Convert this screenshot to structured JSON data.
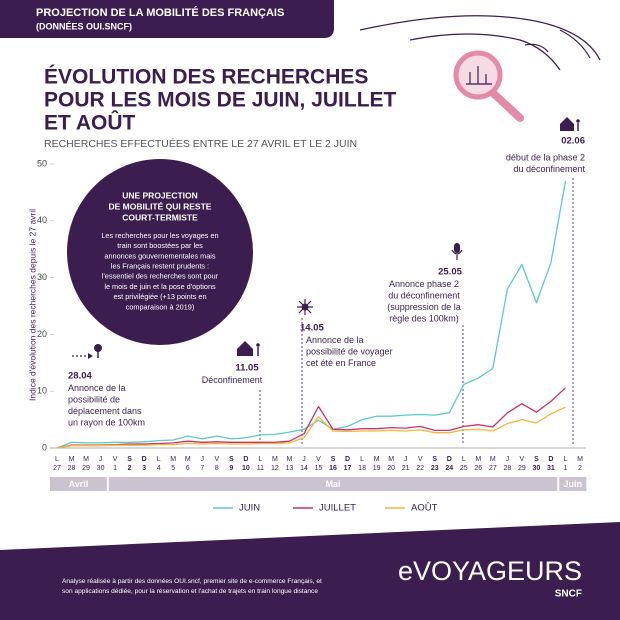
{
  "header": {
    "title": "PROJECTION DE LA MOBILITÉ DES FRANÇAIS",
    "subtitle": "(DONNÉES OUI.SNCF)"
  },
  "chart_data": {
    "type": "line",
    "title": [
      "ÉVOLUTION DES RECHERCHES",
      "POUR LES MOIS DE JUIN, JUILLET",
      "ET AOÛT"
    ],
    "subtitle": "RECHERCHES EFFECTUÉES ENTRE LE 27 AVRIL ET LE 2 JUIN",
    "y_label": "Indice d'évolution des recherches depuis le 27 avril",
    "weekdays": [
      "L",
      "M",
      "M",
      "J",
      "V",
      "S",
      "D",
      "L",
      "M",
      "M",
      "J",
      "V",
      "S",
      "D",
      "L",
      "M",
      "M",
      "J",
      "V",
      "S",
      "D",
      "L",
      "M",
      "M",
      "J",
      "V",
      "S",
      "D",
      "L",
      "M",
      "M",
      "J",
      "V",
      "S",
      "D",
      "L",
      "M"
    ],
    "categories": [
      "27",
      "28",
      "29",
      "30",
      "1",
      "2",
      "3",
      "4",
      "5",
      "6",
      "7",
      "8",
      "9",
      "10",
      "11",
      "12",
      "13",
      "14",
      "15",
      "16",
      "17",
      "18",
      "19",
      "20",
      "21",
      "22",
      "23",
      "24",
      "25",
      "26",
      "27",
      "28",
      "29",
      "30",
      "31",
      "1",
      "2"
    ],
    "months": [
      "Avril",
      "Mai",
      "Juin"
    ],
    "ylim": [
      0,
      50
    ],
    "yticks": [
      0,
      10,
      20,
      30,
      40,
      50
    ],
    "grid": false,
    "legend": "bottom",
    "series": [
      {
        "name": "JUIN",
        "color": "#5ccaca",
        "values": [
          0,
          1,
          0.9,
          0.9,
          1,
          1,
          1.1,
          1.3,
          1.4,
          2.1,
          1.6,
          2.1,
          1.6,
          1.8,
          2.3,
          2.4,
          2.8,
          3.3,
          4.9,
          3.3,
          3.8,
          5,
          5.6,
          5.6,
          5.8,
          5.9,
          5.8,
          6.2,
          11.2,
          12.3,
          14,
          28,
          32.3,
          25.6,
          32.6,
          47,
          null
        ]
      },
      {
        "name": "JUILLET",
        "color": "#c8336b",
        "values": [
          0,
          0.5,
          0.5,
          0.5,
          0.6,
          0.7,
          0.7,
          0.8,
          0.9,
          1.2,
          1,
          1.1,
          1,
          1,
          1,
          1,
          1.2,
          2.5,
          7.3,
          3.3,
          3.2,
          3.4,
          3.4,
          3.6,
          3.5,
          3.8,
          3.1,
          3.1,
          3.8,
          4.1,
          3.7,
          6.2,
          7.8,
          6.3,
          8.2,
          10.6,
          null
        ]
      },
      {
        "name": "AOÛT",
        "color": "#f0b93a",
        "values": [
          0,
          0.4,
          0.4,
          0.4,
          0.5,
          0.5,
          0.5,
          0.6,
          0.6,
          0.8,
          0.7,
          0.8,
          0.7,
          0.7,
          0.8,
          0.8,
          0.9,
          1.8,
          5.5,
          3,
          2.9,
          3,
          3,
          3.1,
          3,
          3.2,
          2.7,
          2.7,
          3.2,
          3.3,
          3,
          4.3,
          5,
          4.4,
          6,
          7.2,
          null
        ]
      }
    ],
    "annotations": [
      {
        "date": "28.04",
        "text": [
          "Annonce de la",
          "possibilité de",
          "déplacement dans",
          "un rayon de 100km"
        ]
      },
      {
        "date": "11.05",
        "text": [
          "Déconfinement"
        ]
      },
      {
        "date": "14.05",
        "text": [
          "Annonce de la",
          "possibilité de voyager",
          "cet été en France"
        ]
      },
      {
        "date": "25.05",
        "text": [
          "Annonce phase 2",
          "du déconfinement",
          "(suppression de la",
          "règle des 100km)"
        ]
      },
      {
        "date": "02.06",
        "text": [
          "début de la phase 2",
          "du déconfinement"
        ]
      }
    ]
  },
  "callout": {
    "title": [
      "UNE PROJECTION",
      "DE MOBILITÉ QUI RESTE",
      "COURT-TERMISTE"
    ],
    "body": [
      "Les recherches pour les voyages en",
      "train sont boostées par les",
      "annonces gouvernementales mais",
      "les Français restent prudents :",
      "l'essentiel des recherches sont pour",
      "le mois de juin et la pose d'options",
      "est privilégiée (+13 points en",
      "comparaison à 2019)"
    ]
  },
  "footer": {
    "text": [
      "Analyse réalisée à partir des données OUI.sncf, premier site de e-commerce Français, et",
      "son applications dédiée, pour la réservation et l'achat de trajets en train longue distance"
    ],
    "logo": "eVOYAGEURS",
    "brand": "SNCF"
  }
}
